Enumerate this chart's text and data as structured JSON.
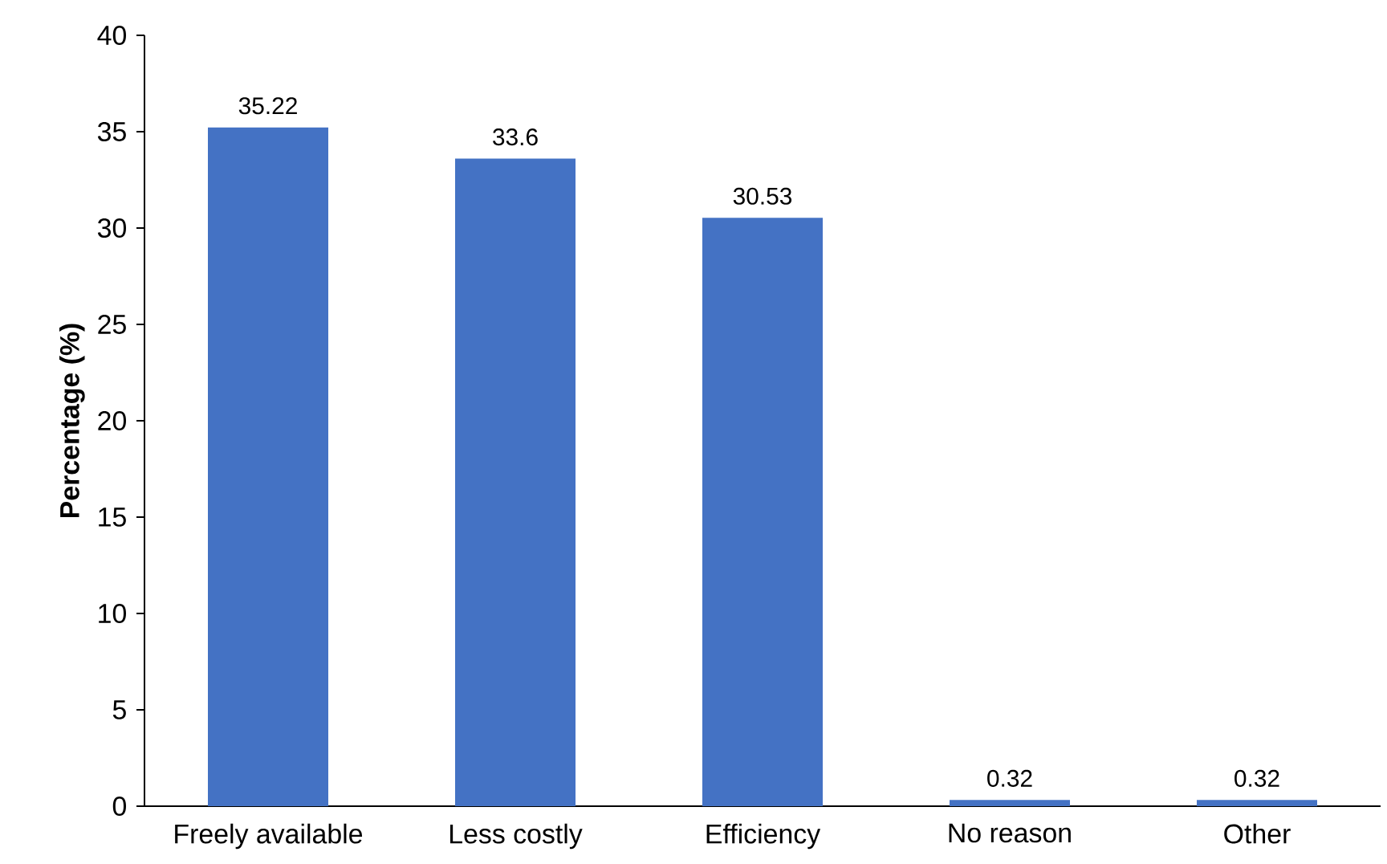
{
  "chart_data": {
    "type": "bar",
    "ylabel": "Percentage (%)",
    "categories": [
      "Freely available",
      "Less costly",
      "Efficiency",
      "No reason",
      "Other"
    ],
    "values": [
      35.22,
      33.6,
      30.53,
      0.32,
      0.32
    ],
    "color": "#4472c4",
    "ylim": [
      0,
      40
    ],
    "yticks": [
      0,
      5,
      10,
      15,
      20,
      25,
      30,
      35,
      40
    ],
    "data_labels": true,
    "grid": false
  }
}
